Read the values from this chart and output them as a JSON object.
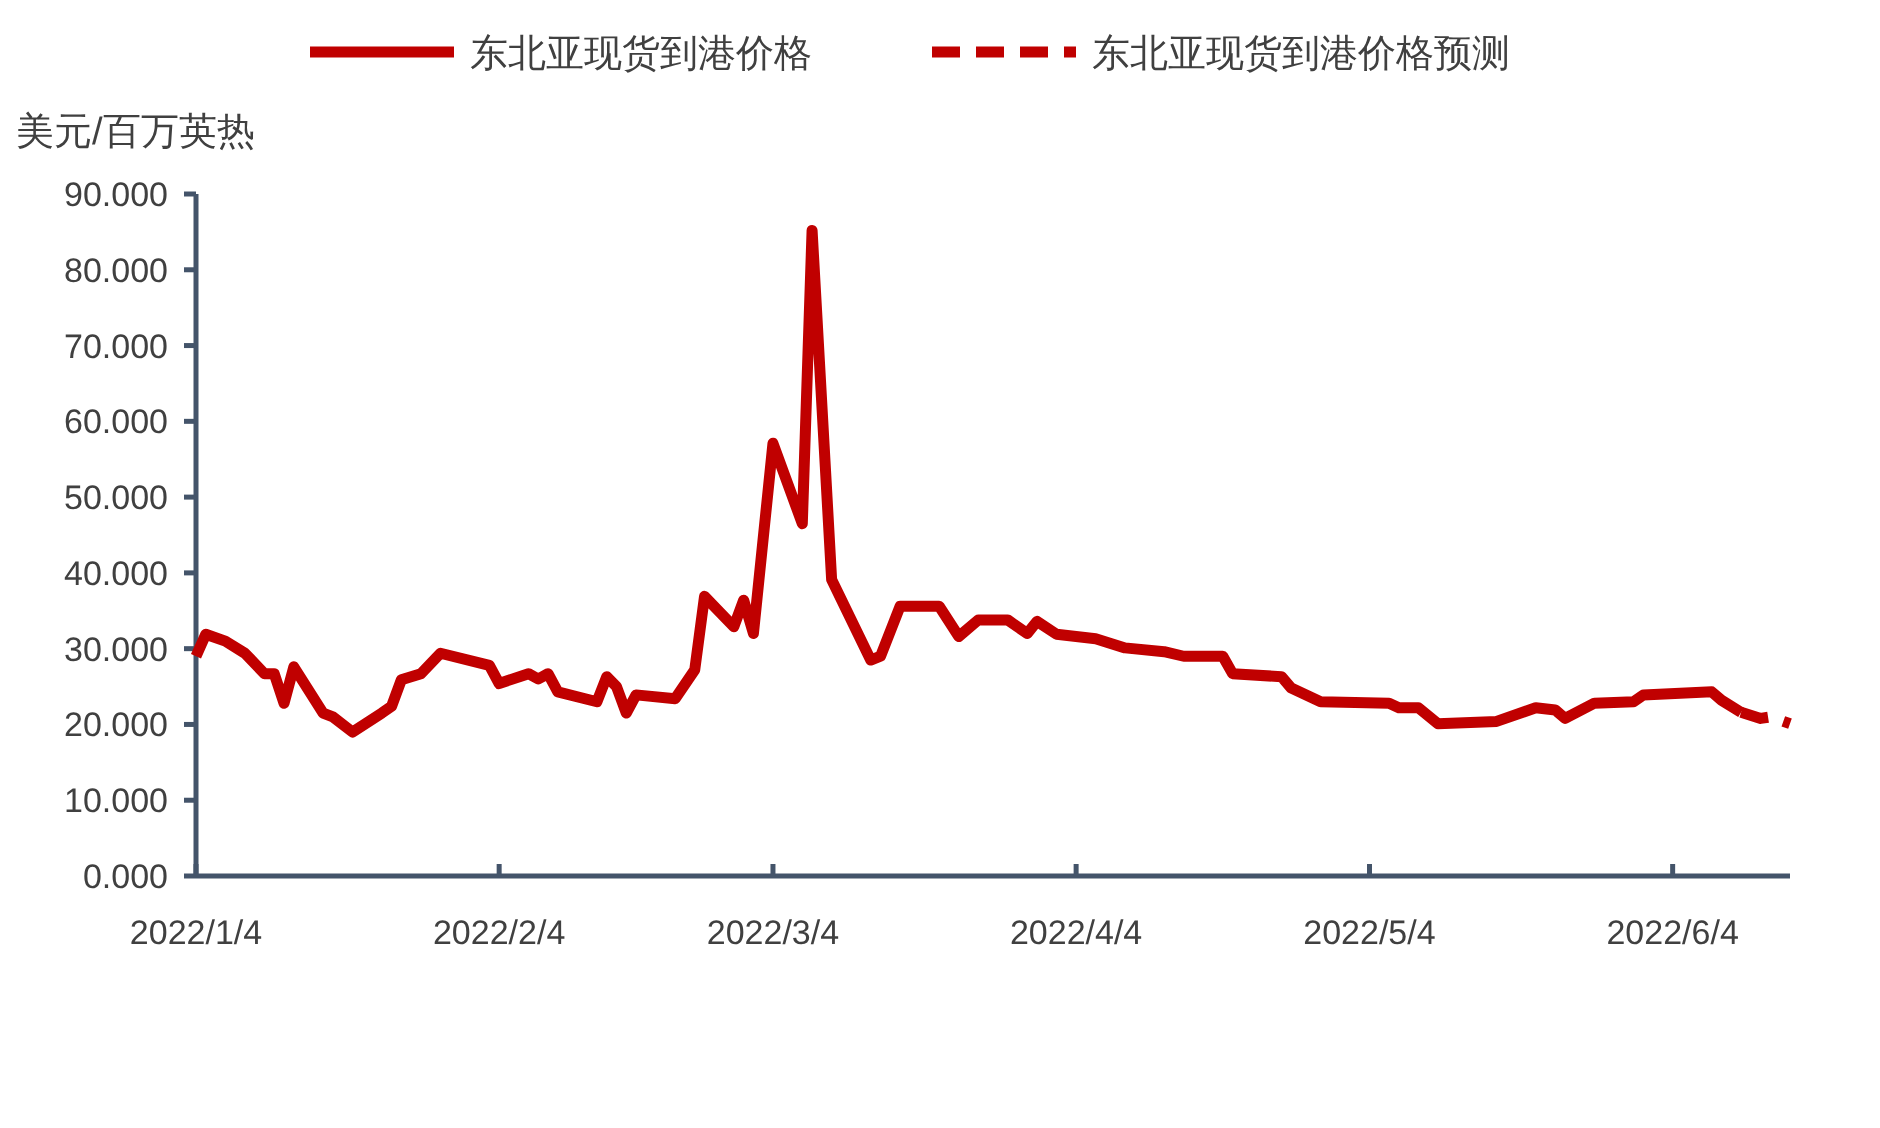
{
  "chart_data": {
    "type": "line",
    "ylabel": "美元/百万英热",
    "legend": "top",
    "xlim": [
      "2022-01-04",
      "2022-06-16"
    ],
    "xticks": [
      {
        "value": "2022-01-04",
        "label": "2022/1/4"
      },
      {
        "value": "2022-02-04",
        "label": "2022/2/4"
      },
      {
        "value": "2022-03-04",
        "label": "2022/3/4"
      },
      {
        "value": "2022-04-04",
        "label": "2022/4/4"
      },
      {
        "value": "2022-05-04",
        "label": "2022/5/4"
      },
      {
        "value": "2022-06-04",
        "label": "2022/6/4"
      }
    ],
    "ylim": [
      0,
      90
    ],
    "yticks": [
      {
        "value": 0,
        "label": "0.000"
      },
      {
        "value": 10,
        "label": "10.000"
      },
      {
        "value": 20,
        "label": "20.000"
      },
      {
        "value": 30,
        "label": "30.000"
      },
      {
        "value": 40,
        "label": "40.000"
      },
      {
        "value": 50,
        "label": "50.000"
      },
      {
        "value": 60,
        "label": "60.000"
      },
      {
        "value": 70,
        "label": "70.000"
      },
      {
        "value": 80,
        "label": "80.000"
      },
      {
        "value": 90,
        "label": "90.000"
      }
    ],
    "series": [
      {
        "name": "东北亚现货到港价格",
        "color": "#c00000",
        "line_style": "solid",
        "x": [
          "2022-01-04",
          "2022-01-05",
          "2022-01-07",
          "2022-01-09",
          "2022-01-11",
          "2022-01-12",
          "2022-01-13",
          "2022-01-14",
          "2022-01-17",
          "2022-01-18",
          "2022-01-20",
          "2022-01-23",
          "2022-01-24",
          "2022-01-25",
          "2022-01-27",
          "2022-01-29",
          "2022-02-03",
          "2022-02-04",
          "2022-02-07",
          "2022-02-08",
          "2022-02-09",
          "2022-02-10",
          "2022-02-14",
          "2022-02-15",
          "2022-02-16",
          "2022-02-17",
          "2022-02-18",
          "2022-02-22",
          "2022-02-24",
          "2022-02-25",
          "2022-02-28",
          "2022-03-01",
          "2022-03-02",
          "2022-03-04",
          "2022-03-07",
          "2022-03-08",
          "2022-03-10",
          "2022-03-14",
          "2022-03-15",
          "2022-03-17",
          "2022-03-21",
          "2022-03-23",
          "2022-03-25",
          "2022-03-28",
          "2022-03-30",
          "2022-03-31",
          "2022-04-02",
          "2022-04-06",
          "2022-04-09",
          "2022-04-13",
          "2022-04-15",
          "2022-04-19",
          "2022-04-20",
          "2022-04-25",
          "2022-04-26",
          "2022-04-29",
          "2022-05-06",
          "2022-05-07",
          "2022-05-09",
          "2022-05-11",
          "2022-05-17",
          "2022-05-21",
          "2022-05-23",
          "2022-05-24",
          "2022-05-27",
          "2022-05-31",
          "2022-06-01",
          "2022-06-08",
          "2022-06-09",
          "2022-06-11"
        ],
        "values": [
          29.0,
          31.9,
          31.0,
          29.4,
          26.7,
          26.7,
          22.8,
          27.6,
          21.5,
          21.0,
          19.0,
          21.5,
          22.4,
          25.9,
          26.7,
          29.4,
          27.8,
          25.4,
          26.7,
          26.0,
          26.7,
          24.3,
          23.0,
          26.3,
          25.0,
          21.5,
          23.9,
          23.4,
          27.2,
          36.9,
          32.9,
          36.4,
          32.0,
          57.1,
          46.5,
          85.2,
          39.1,
          28.5,
          29.0,
          35.6,
          35.6,
          31.6,
          33.8,
          33.8,
          32.0,
          33.6,
          31.9,
          31.3,
          30.1,
          29.6,
          29.0,
          29.0,
          26.7,
          26.3,
          24.8,
          23.0,
          22.8,
          22.2,
          22.2,
          20.1,
          20.4,
          22.2,
          21.9,
          20.8,
          22.8,
          23.0,
          23.9,
          24.3,
          23.2,
          21.6
        ]
      },
      {
        "name": "东北亚现货到港价格预测",
        "color": "#c00000",
        "line_style": "dashed",
        "x": [
          "2022-06-11",
          "2022-06-13",
          "2022-06-14",
          "2022-06-16"
        ],
        "values": [
          21.6,
          20.8,
          21.0,
          20.1
        ]
      }
    ]
  }
}
